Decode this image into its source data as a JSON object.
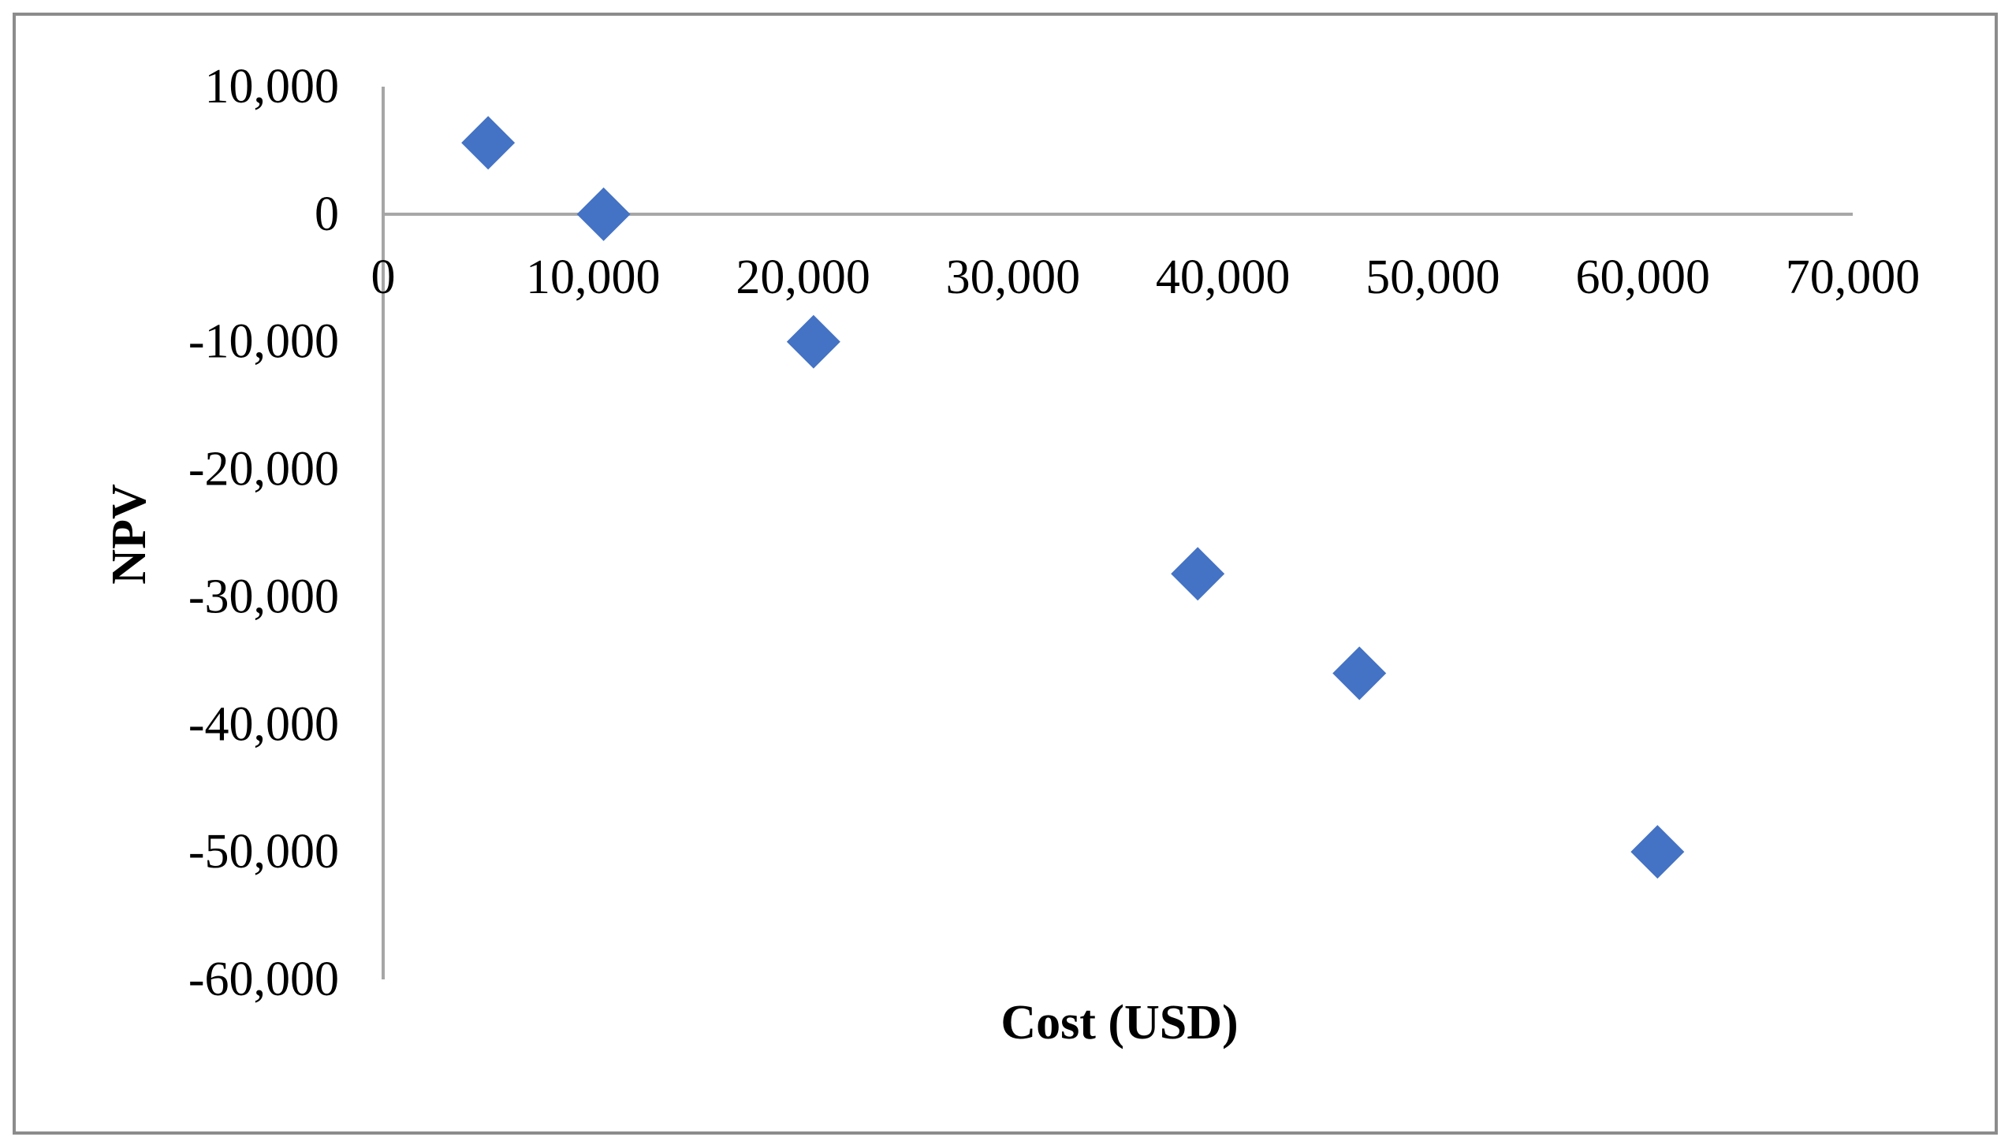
{
  "chart_data": {
    "type": "scatter",
    "title": "",
    "xlabel": "Cost (USD)",
    "ylabel": "NPV",
    "xlim": [
      0,
      70000
    ],
    "ylim": [
      -60000,
      10000
    ],
    "x_ticks": [
      0,
      10000,
      20000,
      30000,
      40000,
      50000,
      60000,
      70000
    ],
    "x_tick_labels": [
      "0",
      "10,000",
      "20,000",
      "30,000",
      "40,000",
      "50,000",
      "60,000",
      "70,000"
    ],
    "y_ticks": [
      10000,
      0,
      -10000,
      -20000,
      -30000,
      -40000,
      -50000,
      -60000
    ],
    "y_tick_labels": [
      "10,000",
      "0",
      "-10,000",
      "-20,000",
      "-30,000",
      "-40,000",
      "-50,000",
      "-60,000"
    ],
    "grid": false,
    "legend": "none",
    "marker": "diamond",
    "colors": {
      "marker": "#4472C4",
      "axis": "#A6A6A6",
      "frame": "#8C8C8C"
    },
    "series": [
      {
        "x": [
          5000,
          10500,
          20500,
          38800,
          46500,
          60700
        ],
        "y": [
          5600,
          0,
          -10000,
          -28200,
          -36000,
          -50000
        ]
      }
    ]
  }
}
